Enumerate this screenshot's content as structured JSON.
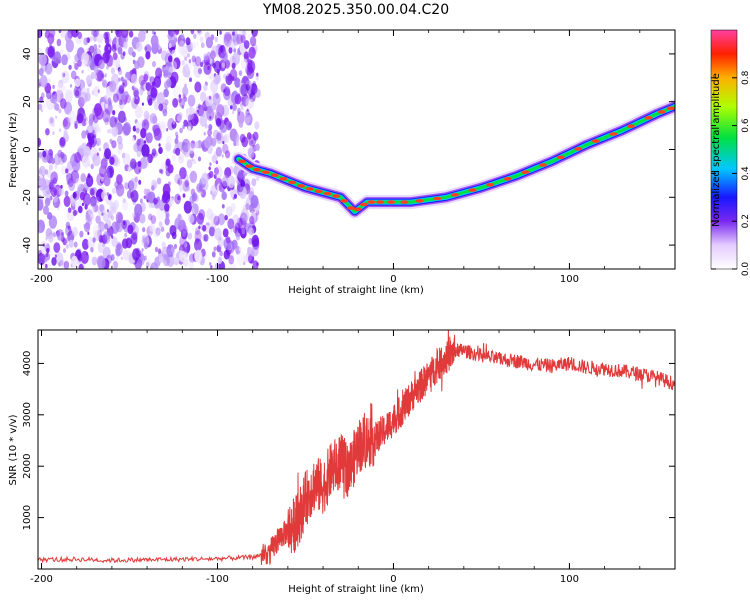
{
  "title": "YM08.2025.350.00.04.C20",
  "chart_data": [
    {
      "type": "heatmap",
      "name": "spectrogram",
      "xlabel": "Height of straight line (km)",
      "ylabel": "Frequency (Hz)",
      "xlim": [
        -202,
        160
      ],
      "ylim": [
        -50,
        50
      ],
      "xticks": [
        -200,
        -100,
        0,
        100
      ],
      "yticks": [
        -40,
        -20,
        0,
        20,
        40
      ],
      "noise_region_x": [
        -202,
        -77
      ],
      "trace_points": [
        {
          "x": -88,
          "y": -4
        },
        {
          "x": -80,
          "y": -8
        },
        {
          "x": -70,
          "y": -10
        },
        {
          "x": -60,
          "y": -13
        },
        {
          "x": -50,
          "y": -16
        },
        {
          "x": -40,
          "y": -18
        },
        {
          "x": -30,
          "y": -20
        },
        {
          "x": -22,
          "y": -26
        },
        {
          "x": -15,
          "y": -22
        },
        {
          "x": -5,
          "y": -22
        },
        {
          "x": 10,
          "y": -22
        },
        {
          "x": 30,
          "y": -20
        },
        {
          "x": 50,
          "y": -16
        },
        {
          "x": 70,
          "y": -11
        },
        {
          "x": 90,
          "y": -5
        },
        {
          "x": 110,
          "y": 2
        },
        {
          "x": 130,
          "y": 8
        },
        {
          "x": 150,
          "y": 15
        },
        {
          "x": 160,
          "y": 18
        }
      ],
      "colorbar": {
        "label": "Normalized spectral amplitude",
        "ticks": [
          "0.0",
          "0.2",
          "0.4",
          "0.6",
          "0.8"
        ],
        "range": [
          0,
          1
        ]
      }
    },
    {
      "type": "line",
      "name": "snr",
      "xlabel": "Height of straight line (km)",
      "ylabel": "SNR (10 * v/v)",
      "xlim": [
        -202,
        160
      ],
      "ylim": [
        0,
        4650
      ],
      "xticks": [
        -200,
        -100,
        0,
        100
      ],
      "yticks": [
        1000,
        2000,
        3000,
        4000
      ],
      "color": "#e03a3a",
      "series": [
        {
          "name": "SNR",
          "x": [
            -202,
            -180,
            -160,
            -140,
            -120,
            -100,
            -80,
            -70,
            -65,
            -60,
            -55,
            -50,
            -45,
            -40,
            -35,
            -30,
            -25,
            -20,
            -15,
            -10,
            -5,
            0,
            5,
            10,
            15,
            20,
            25,
            30,
            35,
            40,
            50,
            60,
            70,
            80,
            90,
            100,
            110,
            120,
            130,
            140,
            150,
            160
          ],
          "y": [
            180,
            190,
            170,
            180,
            190,
            200,
            230,
            330,
            600,
            750,
            900,
            1350,
            1650,
            1600,
            1950,
            2100,
            1900,
            2400,
            2500,
            2550,
            2700,
            2900,
            3100,
            3350,
            3550,
            3750,
            3950,
            4100,
            4250,
            4250,
            4150,
            4080,
            4050,
            3980,
            3950,
            4000,
            3920,
            3900,
            3850,
            3800,
            3720,
            3600
          ]
        }
      ]
    }
  ]
}
